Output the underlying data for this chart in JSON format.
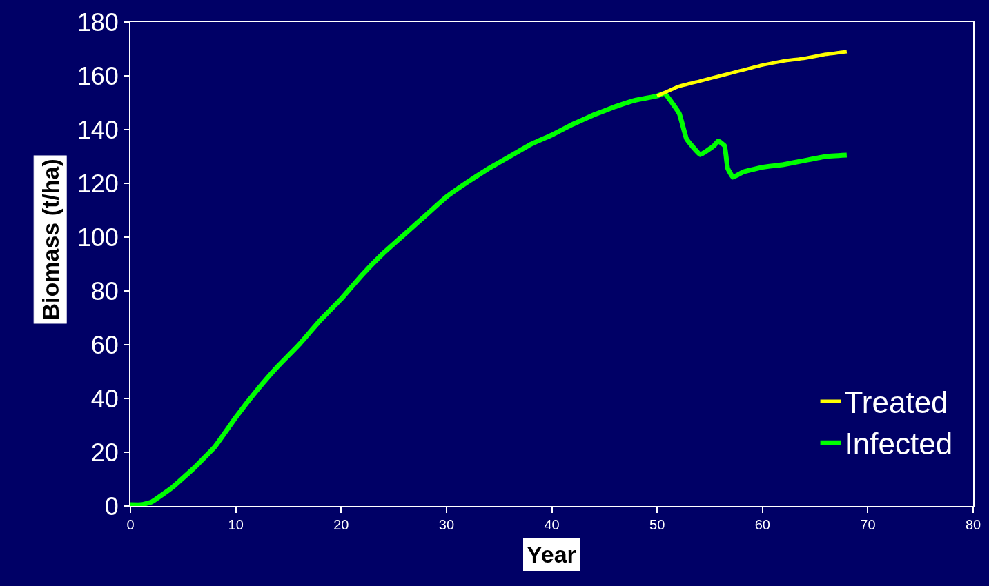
{
  "chart_data": {
    "type": "line",
    "xlabel": "Year",
    "ylabel": "Biomass (t/ha)",
    "xlim": [
      0,
      80
    ],
    "xticks": [
      0,
      10,
      20,
      30,
      40,
      50,
      60,
      70,
      80
    ],
    "ylim": [
      0,
      180
    ],
    "yticks": [
      0,
      20,
      40,
      60,
      80,
      100,
      120,
      140,
      160,
      180
    ],
    "grid": false,
    "legend": "bottom right",
    "marker": "none",
    "line_style": "solid",
    "series": [
      {
        "name": "Treated",
        "color": "#ffff00",
        "x": [
          50,
          52,
          54,
          56,
          58,
          60,
          62,
          64,
          66,
          68
        ],
        "values": [
          152.5,
          156,
          158,
          160,
          162,
          164,
          165.5,
          166.5,
          168,
          169
        ]
      },
      {
        "name": "Infected",
        "color": "#00ff00",
        "x": [
          0,
          1,
          2,
          4,
          6,
          8,
          10,
          12,
          14,
          16,
          18,
          20,
          22,
          24,
          26,
          28,
          30,
          32,
          34,
          36,
          38,
          40,
          42,
          44,
          46,
          48,
          50,
          50.7,
          52.1,
          52.8,
          54.1,
          55.4,
          55.8,
          56.4,
          56.7,
          57.2,
          58.2,
          60,
          62,
          64,
          66,
          68
        ],
        "values": [
          0.5,
          0.5,
          1.5,
          7,
          14,
          22,
          33,
          43,
          52,
          60,
          69,
          77,
          86,
          94,
          101,
          108,
          115,
          120.5,
          125.5,
          130,
          134.5,
          138,
          142,
          145.5,
          148.5,
          151,
          152.5,
          153.5,
          146,
          136.5,
          130.7,
          134,
          135.8,
          134,
          125.6,
          122.3,
          124.3,
          126,
          127,
          128.5,
          130,
          130.5
        ]
      }
    ]
  }
}
